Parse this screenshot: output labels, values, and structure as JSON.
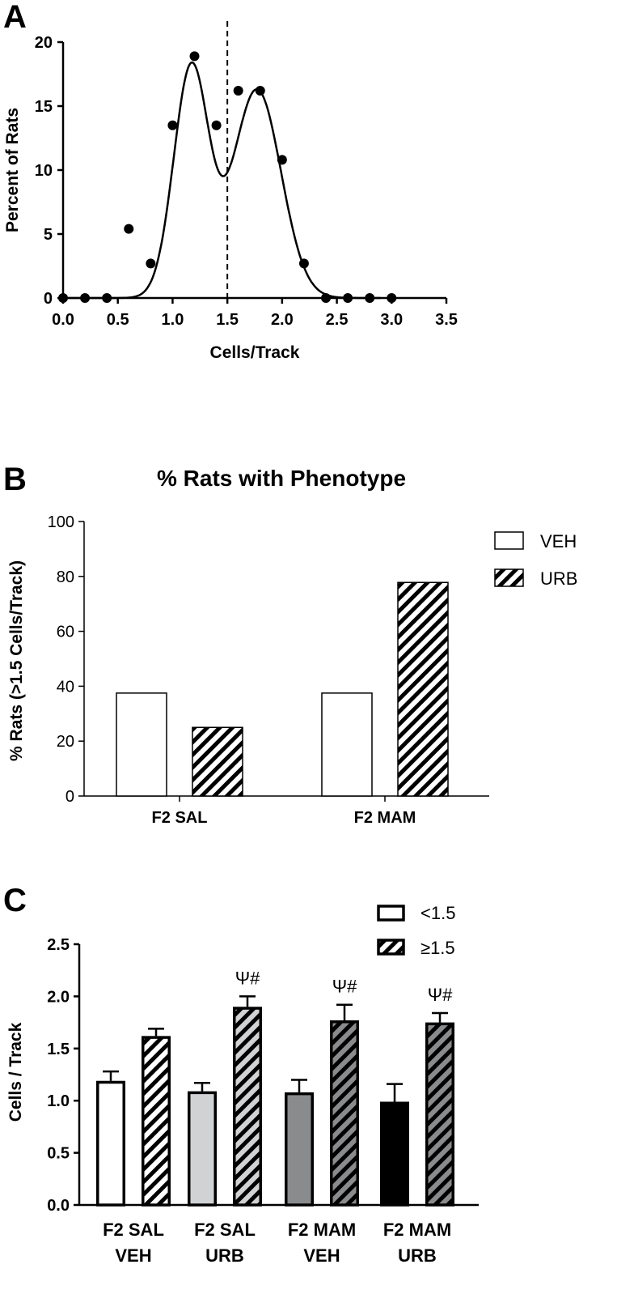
{
  "chart_data": [
    {
      "panel": "A",
      "type": "scatter",
      "title": "",
      "xlabel": "Cells/Track",
      "ylabel": "Percent of Rats",
      "xlim": [
        0,
        3.5
      ],
      "ylim": [
        0,
        20
      ],
      "xticks": [
        "0.0",
        "0.5",
        "1.0",
        "1.5",
        "2.0",
        "2.5",
        "3.0",
        "3.5"
      ],
      "yticks": [
        "0",
        "5",
        "10",
        "15",
        "20"
      ],
      "reference_line_x": 1.5,
      "points": [
        {
          "x": 0.0,
          "y": 0
        },
        {
          "x": 0.2,
          "y": 0
        },
        {
          "x": 0.4,
          "y": 0
        },
        {
          "x": 0.6,
          "y": 5.4
        },
        {
          "x": 0.8,
          "y": 2.7
        },
        {
          "x": 1.0,
          "y": 13.5
        },
        {
          "x": 1.2,
          "y": 18.9
        },
        {
          "x": 1.4,
          "y": 13.5
        },
        {
          "x": 1.6,
          "y": 16.2
        },
        {
          "x": 1.8,
          "y": 16.2
        },
        {
          "x": 2.0,
          "y": 10.8
        },
        {
          "x": 2.2,
          "y": 2.7
        },
        {
          "x": 2.4,
          "y": 0
        },
        {
          "x": 2.6,
          "y": 0
        },
        {
          "x": 2.8,
          "y": 0
        },
        {
          "x": 3.0,
          "y": 0
        }
      ],
      "fit": {
        "type": "sum of two gaussians",
        "components": [
          {
            "amplitude": 18.0,
            "mean": 1.17,
            "sd": 0.16
          },
          {
            "amplitude": 16.3,
            "mean": 1.77,
            "sd": 0.22
          }
        ]
      },
      "grid": false
    },
    {
      "panel": "B",
      "type": "bar",
      "title": "% Rats with Phenotype",
      "xlabel": "",
      "ylabel": "% Rats (>1.5 Cells/Track)",
      "ylim": [
        0,
        100
      ],
      "yticks": [
        "0",
        "20",
        "40",
        "60",
        "80",
        "100"
      ],
      "categories": [
        "F2 SAL",
        "F2 MAM"
      ],
      "series": [
        {
          "name": "VEH",
          "values": [
            37.5,
            37.5
          ],
          "pattern": "open"
        },
        {
          "name": "URB",
          "values": [
            25,
            77.8
          ],
          "pattern": "hatched"
        }
      ],
      "legend": "top-right",
      "grid": false
    },
    {
      "panel": "C",
      "type": "bar",
      "title": "",
      "xlabel": "",
      "ylabel": "Cells / Track",
      "ylim": [
        0,
        2.5
      ],
      "yticks": [
        "0.0",
        "0.5",
        "1.0",
        "1.5",
        "2.0",
        "2.5"
      ],
      "groups": [
        {
          "line1": "F2 SAL",
          "line2": "VEH",
          "color": "#ffffff"
        },
        {
          "line1": "F2 SAL",
          "line2": "URB",
          "color": "#d0d2d4"
        },
        {
          "line1": "F2 MAM",
          "line2": "VEH",
          "color": "#8a8b8d"
        },
        {
          "line1": "F2 MAM",
          "line2": "URB",
          "color": "#000000"
        }
      ],
      "series": [
        {
          "name": "<1.5",
          "pattern": "solid",
          "values": [
            1.19,
            1.09,
            1.08,
            0.99
          ],
          "errors": [
            0.09,
            0.08,
            0.12,
            0.17
          ]
        },
        {
          "name": "≥1.5",
          "pattern": "hatched",
          "values": [
            1.62,
            1.9,
            1.77,
            1.75
          ],
          "errors": [
            0.07,
            0.1,
            0.15,
            0.09
          ]
        }
      ],
      "annotations": [
        "",
        "Ψ#",
        "Ψ#",
        "Ψ#"
      ],
      "legend": "top-right",
      "grid": false
    }
  ]
}
